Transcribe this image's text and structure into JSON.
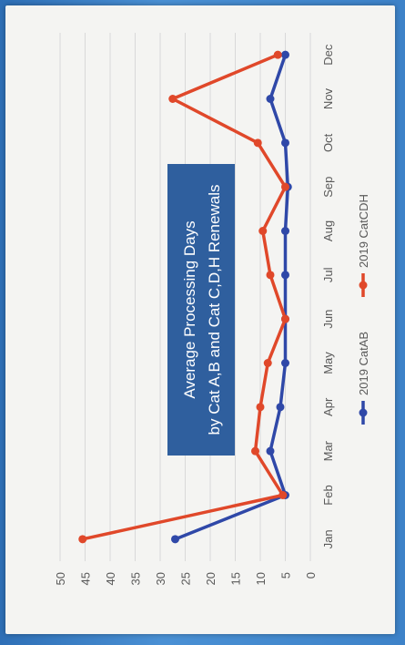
{
  "chart_data": {
    "type": "line",
    "title_line1": "Average Processing Days",
    "title_line2": "by Cat A,B and Cat C,D,H Renewals",
    "categories": [
      "Jan",
      "Feb",
      "Mar",
      "Apr",
      "May",
      "Jun",
      "Jul",
      "Aug",
      "Sep",
      "Oct",
      "Nov",
      "Dec"
    ],
    "y_ticks": [
      "0",
      "5",
      "10",
      "15",
      "20",
      "25",
      "30",
      "35",
      "40",
      "45",
      "50"
    ],
    "ylim": [
      0,
      50
    ],
    "grid": true,
    "legend_position": "bottom",
    "series": [
      {
        "name": "2019 CatAB",
        "color": "#2f48a8",
        "values": [
          27,
          5,
          8,
          6,
          5,
          5,
          5,
          5,
          4.5,
          5,
          8,
          5
        ]
      },
      {
        "name": "2019 CatCDH",
        "color": "#e0482a",
        "values": [
          45.5,
          5.5,
          11,
          10,
          8.5,
          5,
          8,
          9.5,
          5,
          10.5,
          27.5,
          6.5
        ]
      }
    ],
    "title_box_color": "#2f5f9e"
  }
}
